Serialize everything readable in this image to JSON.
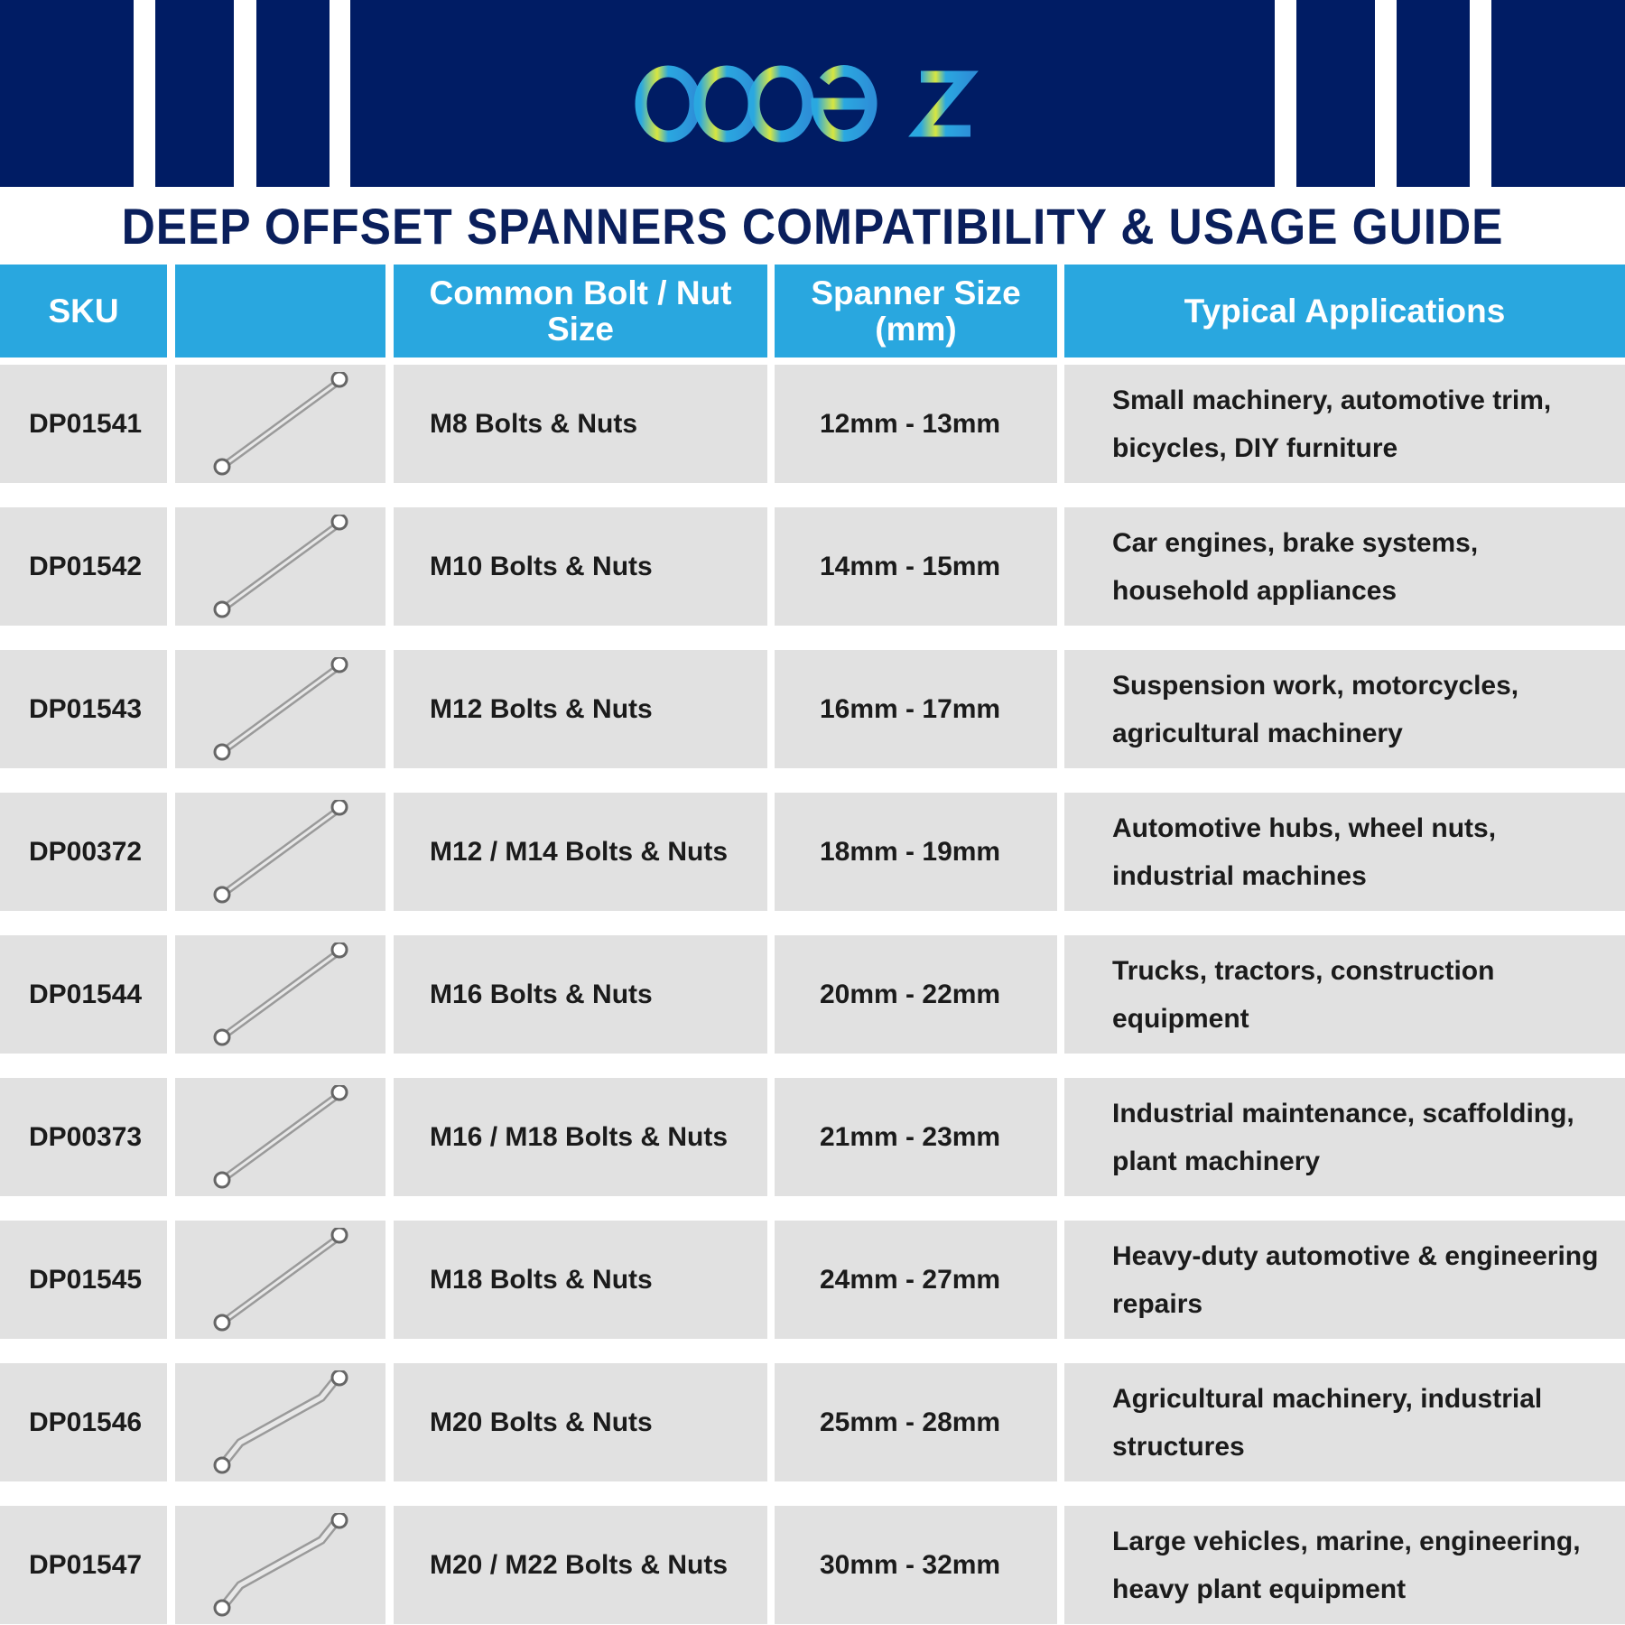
{
  "brand": {
    "logo_text": "dopetz",
    "colors": {
      "navy": "#001c64",
      "header_blue": "#29a7df",
      "row_gray": "#e1e1e1"
    }
  },
  "title": "DEEP OFFSET SPANNERS COMPATIBILITY & USAGE GUIDE",
  "columns": [
    "SKU",
    "",
    "Common Bolt / Nut Size",
    "Spanner Size (mm)",
    "Typical Applications"
  ],
  "rows": [
    {
      "sku": "DP01541",
      "bolt": "M8 Bolts & Nuts",
      "size": "12mm - 13mm",
      "apps": "Small machinery, automotive trim, bicycles, DIY furniture",
      "image": "straight-spanner-icon"
    },
    {
      "sku": "DP01542",
      "bolt": "M10 Bolts & Nuts",
      "size": "14mm - 15mm",
      "apps": "Car engines, brake systems, household appliances",
      "image": "straight-spanner-icon"
    },
    {
      "sku": "DP01543",
      "bolt": "M12 Bolts & Nuts",
      "size": "16mm - 17mm",
      "apps": "Suspension work, motorcycles, agricultural machinery",
      "image": "straight-spanner-icon"
    },
    {
      "sku": "DP00372",
      "bolt": "M12 / M14 Bolts & Nuts",
      "size": "18mm - 19mm",
      "apps": "Automotive hubs, wheel nuts, industrial machines",
      "image": "straight-spanner-icon"
    },
    {
      "sku": "DP01544",
      "bolt": "M16 Bolts & Nuts",
      "size": "20mm - 22mm",
      "apps": "Trucks, tractors, construction equipment",
      "image": "straight-spanner-icon"
    },
    {
      "sku": "DP00373",
      "bolt": "M16 / M18 Bolts & Nuts",
      "size": "21mm - 23mm",
      "apps": "Industrial maintenance, scaffolding, plant machinery",
      "image": "straight-spanner-icon"
    },
    {
      "sku": "DP01545",
      "bolt": "M18 Bolts & Nuts",
      "size": "24mm - 27mm",
      "apps": "Heavy-duty automotive & engineering repairs",
      "image": "straight-spanner-icon"
    },
    {
      "sku": "DP01546",
      "bolt": "M20 Bolts & Nuts",
      "size": "25mm - 28mm",
      "apps": "Agricultural machinery, industrial structures",
      "image": "deep-offset-spanner-icon"
    },
    {
      "sku": "DP01547",
      "bolt": "M20 / M22 Bolts & Nuts",
      "size": "30mm - 32mm",
      "apps": "Large vehicles, marine, engineering, heavy plant equipment",
      "image": "deep-offset-spanner-icon"
    }
  ]
}
